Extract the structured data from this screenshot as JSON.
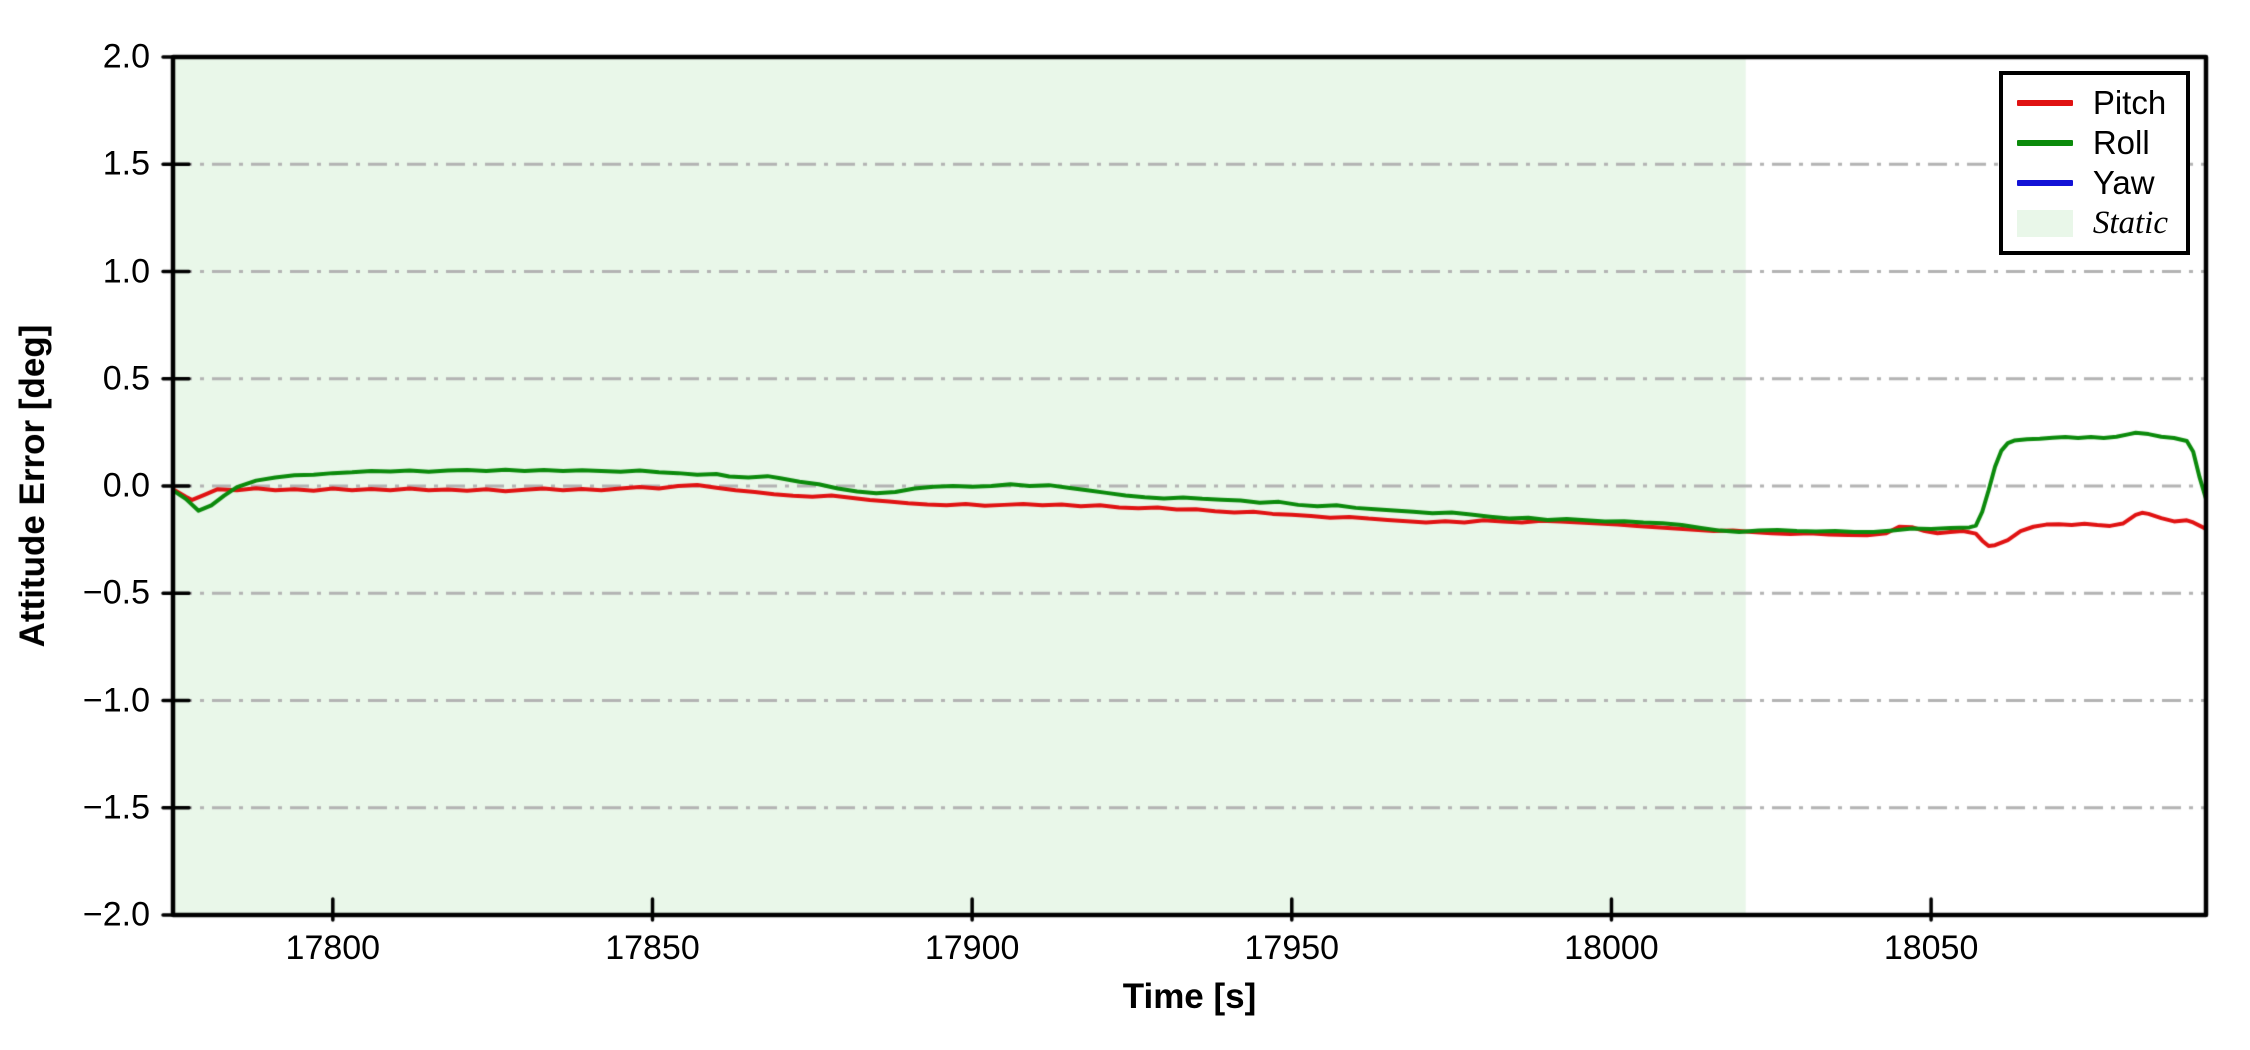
{
  "axes": {
    "xlabel": "Time [s]",
    "ylabel": "Attitude Error [deg]"
  },
  "legend": {
    "position": "upper right",
    "entries": [
      {
        "id": "pitch",
        "label": "Pitch",
        "swatch": "line",
        "color": "#e01212",
        "italic": false
      },
      {
        "id": "roll",
        "label": "Roll",
        "swatch": "line",
        "color": "#0b8a0b",
        "italic": false
      },
      {
        "id": "yaw",
        "label": "Yaw",
        "swatch": "line",
        "color": "#1212d6",
        "italic": false
      },
      {
        "id": "static",
        "label": "Static",
        "swatch": "patch",
        "color": "#e9f7e9",
        "italic": true
      }
    ]
  },
  "chart_data": {
    "type": "line",
    "title": "",
    "xlabel": "Time [s]",
    "ylabel": "Attitude Error [deg]",
    "xlim": [
      17775,
      18093
    ],
    "ylim": [
      -2.0,
      2.0
    ],
    "xticks": [
      {
        "value": 17800,
        "label": "17800"
      },
      {
        "value": 17850,
        "label": "17850"
      },
      {
        "value": 17900,
        "label": "17900"
      },
      {
        "value": 17950,
        "label": "17950"
      },
      {
        "value": 18000,
        "label": "18000"
      },
      {
        "value": 18050,
        "label": "18050"
      }
    ],
    "yticks": [
      {
        "value": 2.0,
        "label": "2.0"
      },
      {
        "value": 1.5,
        "label": "1.5"
      },
      {
        "value": 1.0,
        "label": "1.0"
      },
      {
        "value": 0.5,
        "label": "0.5"
      },
      {
        "value": 0.0,
        "label": "0.0"
      },
      {
        "value": -0.5,
        "label": "−0.5"
      },
      {
        "value": -1.0,
        "label": "−1.0"
      },
      {
        "value": -1.5,
        "label": "−1.5"
      },
      {
        "value": -2.0,
        "label": "−2.0"
      }
    ],
    "grid": {
      "axis": "y",
      "style": "dash-dot",
      "color": "#b3b3b3",
      "on_limits": false
    },
    "static_region": {
      "label": "Static",
      "xstart": 17775,
      "xend": 18021,
      "color": "#e9f7e9"
    },
    "legend_position": "upper right",
    "series": [
      {
        "name": "Pitch",
        "color": "#e01212",
        "linewidth": 4,
        "visible_in_plot": true,
        "points": [
          [
            17775,
            -0.015
          ],
          [
            17777,
            -0.05
          ],
          [
            17778,
            -0.065
          ],
          [
            17780,
            -0.04
          ],
          [
            17782,
            -0.015
          ],
          [
            17785,
            -0.02
          ],
          [
            17788,
            -0.01
          ],
          [
            17791,
            -0.02
          ],
          [
            17794,
            -0.015
          ],
          [
            17797,
            -0.022
          ],
          [
            17800,
            -0.012
          ],
          [
            17803,
            -0.02
          ],
          [
            17806,
            -0.014
          ],
          [
            17809,
            -0.02
          ],
          [
            17812,
            -0.012
          ],
          [
            17815,
            -0.02
          ],
          [
            17818,
            -0.016
          ],
          [
            17821,
            -0.022
          ],
          [
            17824,
            -0.015
          ],
          [
            17827,
            -0.025
          ],
          [
            17830,
            -0.018
          ],
          [
            17833,
            -0.012
          ],
          [
            17836,
            -0.02
          ],
          [
            17839,
            -0.014
          ],
          [
            17842,
            -0.02
          ],
          [
            17845,
            -0.012
          ],
          [
            17848,
            -0.005
          ],
          [
            17851,
            -0.012
          ],
          [
            17854,
            0.0
          ],
          [
            17857,
            0.005
          ],
          [
            17860,
            -0.008
          ],
          [
            17863,
            -0.02
          ],
          [
            17866,
            -0.028
          ],
          [
            17869,
            -0.038
          ],
          [
            17872,
            -0.045
          ],
          [
            17875,
            -0.05
          ],
          [
            17878,
            -0.044
          ],
          [
            17881,
            -0.055
          ],
          [
            17884,
            -0.065
          ],
          [
            17887,
            -0.072
          ],
          [
            17890,
            -0.08
          ],
          [
            17893,
            -0.086
          ],
          [
            17896,
            -0.09
          ],
          [
            17899,
            -0.084
          ],
          [
            17902,
            -0.092
          ],
          [
            17905,
            -0.088
          ],
          [
            17908,
            -0.084
          ],
          [
            17911,
            -0.09
          ],
          [
            17914,
            -0.086
          ],
          [
            17917,
            -0.094
          ],
          [
            17920,
            -0.09
          ],
          [
            17923,
            -0.1
          ],
          [
            17926,
            -0.104
          ],
          [
            17929,
            -0.1
          ],
          [
            17932,
            -0.11
          ],
          [
            17935,
            -0.108
          ],
          [
            17938,
            -0.118
          ],
          [
            17941,
            -0.124
          ],
          [
            17944,
            -0.12
          ],
          [
            17947,
            -0.13
          ],
          [
            17950,
            -0.134
          ],
          [
            17953,
            -0.14
          ],
          [
            17956,
            -0.148
          ],
          [
            17959,
            -0.144
          ],
          [
            17962,
            -0.152
          ],
          [
            17965,
            -0.158
          ],
          [
            17968,
            -0.164
          ],
          [
            17971,
            -0.17
          ],
          [
            17974,
            -0.164
          ],
          [
            17977,
            -0.17
          ],
          [
            17980,
            -0.16
          ],
          [
            17983,
            -0.165
          ],
          [
            17986,
            -0.17
          ],
          [
            17989,
            -0.162
          ],
          [
            17992,
            -0.166
          ],
          [
            17995,
            -0.17
          ],
          [
            17998,
            -0.175
          ],
          [
            18001,
            -0.18
          ],
          [
            18004,
            -0.186
          ],
          [
            18007,
            -0.192
          ],
          [
            18010,
            -0.198
          ],
          [
            18013,
            -0.204
          ],
          [
            18016,
            -0.21
          ],
          [
            18019,
            -0.208
          ],
          [
            18022,
            -0.214
          ],
          [
            18025,
            -0.22
          ],
          [
            18028,
            -0.224
          ],
          [
            18031,
            -0.22
          ],
          [
            18034,
            -0.226
          ],
          [
            18037,
            -0.228
          ],
          [
            18040,
            -0.23
          ],
          [
            18043,
            -0.22
          ],
          [
            18045,
            -0.19
          ],
          [
            18047,
            -0.192
          ],
          [
            18049,
            -0.21
          ],
          [
            18051,
            -0.22
          ],
          [
            18053,
            -0.214
          ],
          [
            18055,
            -0.21
          ],
          [
            18057,
            -0.222
          ],
          [
            18058,
            -0.255
          ],
          [
            18059,
            -0.28
          ],
          [
            18060,
            -0.276
          ],
          [
            18062,
            -0.252
          ],
          [
            18064,
            -0.21
          ],
          [
            18066,
            -0.19
          ],
          [
            18068,
            -0.18
          ],
          [
            18070,
            -0.178
          ],
          [
            18072,
            -0.182
          ],
          [
            18074,
            -0.176
          ],
          [
            18076,
            -0.182
          ],
          [
            18078,
            -0.186
          ],
          [
            18080,
            -0.175
          ],
          [
            18082,
            -0.135
          ],
          [
            18083,
            -0.125
          ],
          [
            18084,
            -0.13
          ],
          [
            18086,
            -0.15
          ],
          [
            18088,
            -0.165
          ],
          [
            18090,
            -0.16
          ],
          [
            18091,
            -0.17
          ],
          [
            18093,
            -0.2
          ]
        ]
      },
      {
        "name": "Roll",
        "color": "#0b8a0b",
        "linewidth": 4,
        "visible_in_plot": true,
        "points": [
          [
            17775,
            -0.02
          ],
          [
            17777,
            -0.06
          ],
          [
            17779,
            -0.115
          ],
          [
            17781,
            -0.09
          ],
          [
            17783,
            -0.045
          ],
          [
            17785,
            -0.005
          ],
          [
            17788,
            0.025
          ],
          [
            17791,
            0.04
          ],
          [
            17794,
            0.05
          ],
          [
            17797,
            0.052
          ],
          [
            17800,
            0.06
          ],
          [
            17803,
            0.064
          ],
          [
            17806,
            0.07
          ],
          [
            17809,
            0.068
          ],
          [
            17812,
            0.072
          ],
          [
            17815,
            0.066
          ],
          [
            17818,
            0.072
          ],
          [
            17821,
            0.075
          ],
          [
            17824,
            0.07
          ],
          [
            17827,
            0.076
          ],
          [
            17830,
            0.07
          ],
          [
            17833,
            0.075
          ],
          [
            17836,
            0.07
          ],
          [
            17839,
            0.074
          ],
          [
            17842,
            0.07
          ],
          [
            17845,
            0.066
          ],
          [
            17848,
            0.072
          ],
          [
            17851,
            0.064
          ],
          [
            17854,
            0.06
          ],
          [
            17857,
            0.052
          ],
          [
            17860,
            0.056
          ],
          [
            17862,
            0.044
          ],
          [
            17865,
            0.04
          ],
          [
            17868,
            0.046
          ],
          [
            17870,
            0.036
          ],
          [
            17873,
            0.02
          ],
          [
            17876,
            0.008
          ],
          [
            17879,
            -0.012
          ],
          [
            17882,
            -0.026
          ],
          [
            17885,
            -0.034
          ],
          [
            17888,
            -0.028
          ],
          [
            17891,
            -0.012
          ],
          [
            17894,
            -0.004
          ],
          [
            17897,
            0.0
          ],
          [
            17900,
            -0.004
          ],
          [
            17903,
            0.0
          ],
          [
            17906,
            0.008
          ],
          [
            17909,
            0.0
          ],
          [
            17912,
            0.004
          ],
          [
            17915,
            -0.008
          ],
          [
            17918,
            -0.02
          ],
          [
            17921,
            -0.032
          ],
          [
            17924,
            -0.044
          ],
          [
            17927,
            -0.052
          ],
          [
            17930,
            -0.058
          ],
          [
            17933,
            -0.054
          ],
          [
            17936,
            -0.06
          ],
          [
            17939,
            -0.064
          ],
          [
            17942,
            -0.068
          ],
          [
            17945,
            -0.078
          ],
          [
            17948,
            -0.074
          ],
          [
            17951,
            -0.088
          ],
          [
            17954,
            -0.094
          ],
          [
            17957,
            -0.09
          ],
          [
            17960,
            -0.102
          ],
          [
            17963,
            -0.108
          ],
          [
            17966,
            -0.114
          ],
          [
            17969,
            -0.12
          ],
          [
            17972,
            -0.127
          ],
          [
            17975,
            -0.124
          ],
          [
            17978,
            -0.133
          ],
          [
            17981,
            -0.143
          ],
          [
            17984,
            -0.152
          ],
          [
            17987,
            -0.148
          ],
          [
            17990,
            -0.158
          ],
          [
            17993,
            -0.154
          ],
          [
            17996,
            -0.16
          ],
          [
            17999,
            -0.166
          ],
          [
            18002,
            -0.164
          ],
          [
            18005,
            -0.17
          ],
          [
            18008,
            -0.174
          ],
          [
            18011,
            -0.182
          ],
          [
            18014,
            -0.196
          ],
          [
            18017,
            -0.208
          ],
          [
            18020,
            -0.214
          ],
          [
            18023,
            -0.208
          ],
          [
            18026,
            -0.205
          ],
          [
            18029,
            -0.21
          ],
          [
            18032,
            -0.212
          ],
          [
            18035,
            -0.21
          ],
          [
            18038,
            -0.214
          ],
          [
            18041,
            -0.214
          ],
          [
            18044,
            -0.208
          ],
          [
            18047,
            -0.198
          ],
          [
            18050,
            -0.2
          ],
          [
            18053,
            -0.196
          ],
          [
            18056,
            -0.193
          ],
          [
            18057,
            -0.185
          ],
          [
            18058,
            -0.12
          ],
          [
            18059,
            -0.02
          ],
          [
            18060,
            0.09
          ],
          [
            18061,
            0.165
          ],
          [
            18062,
            0.2
          ],
          [
            18063,
            0.212
          ],
          [
            18065,
            0.218
          ],
          [
            18067,
            0.22
          ],
          [
            18069,
            0.225
          ],
          [
            18071,
            0.228
          ],
          [
            18073,
            0.224
          ],
          [
            18075,
            0.228
          ],
          [
            18077,
            0.224
          ],
          [
            18079,
            0.23
          ],
          [
            18081,
            0.242
          ],
          [
            18082,
            0.248
          ],
          [
            18084,
            0.242
          ],
          [
            18086,
            0.23
          ],
          [
            18088,
            0.224
          ],
          [
            18090,
            0.21
          ],
          [
            18091,
            0.16
          ],
          [
            18092,
            0.04
          ],
          [
            18093,
            -0.06
          ]
        ]
      },
      {
        "name": "Yaw",
        "color": "#1212d6",
        "linewidth": 4,
        "visible_in_plot": false,
        "points": []
      }
    ]
  }
}
